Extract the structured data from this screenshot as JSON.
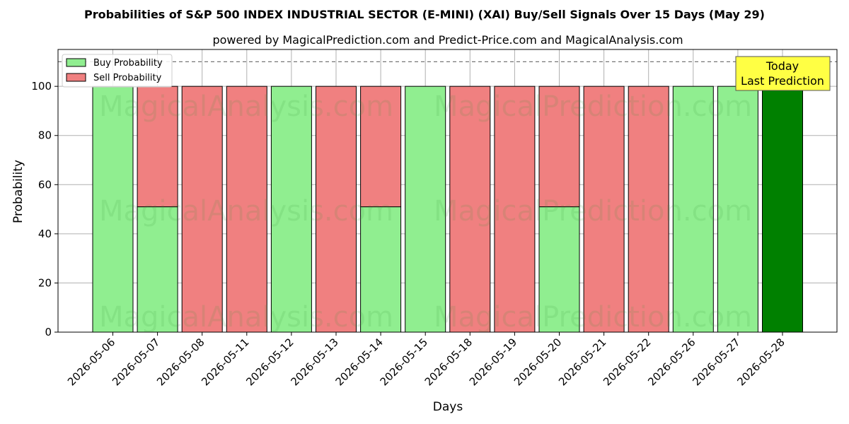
{
  "chart_data": {
    "type": "bar",
    "stacked": true,
    "title": "Probabilities of S&P 500 INDEX INDUSTRIAL SECTOR (E-MINI) (XAI) Buy/Sell Signals Over 15 Days (May 29)",
    "subtitle": "powered by MagicalPrediction.com and Predict-Price.com and MagicalAnalysis.com",
    "xlabel": "Days",
    "ylabel": "Probability",
    "ylim": [
      0,
      115
    ],
    "yticks": [
      0,
      20,
      40,
      60,
      80,
      100
    ],
    "grid": true,
    "legend_position": "top-left",
    "threshold_line": 110,
    "categories": [
      "2026-05-06",
      "2026-05-07",
      "2026-05-08",
      "2026-05-11",
      "2026-05-12",
      "2026-05-13",
      "2026-05-14",
      "2026-05-15",
      "2026-05-18",
      "2026-05-19",
      "2026-05-20",
      "2026-05-21",
      "2026-05-22",
      "2026-05-26",
      "2026-05-27",
      "2026-05-28"
    ],
    "series": [
      {
        "name": "Buy Probability",
        "color": "#90ee90",
        "values": [
          100,
          51,
          0,
          0,
          100,
          0,
          51,
          100,
          0,
          0,
          51,
          0,
          0,
          100,
          100,
          100
        ]
      },
      {
        "name": "Sell Probability",
        "color": "#f08080",
        "values": [
          0,
          49,
          100,
          100,
          0,
          100,
          49,
          0,
          100,
          100,
          49,
          100,
          100,
          0,
          0,
          0
        ]
      }
    ],
    "highlight": {
      "index": 15,
      "color": "#008000"
    },
    "annotation": {
      "line1": "Today",
      "line2": "Last Prediction",
      "background": "#ffff44"
    },
    "watermarks": [
      "MagicalAnalysis.com",
      "MagicalPrediction.com"
    ]
  }
}
